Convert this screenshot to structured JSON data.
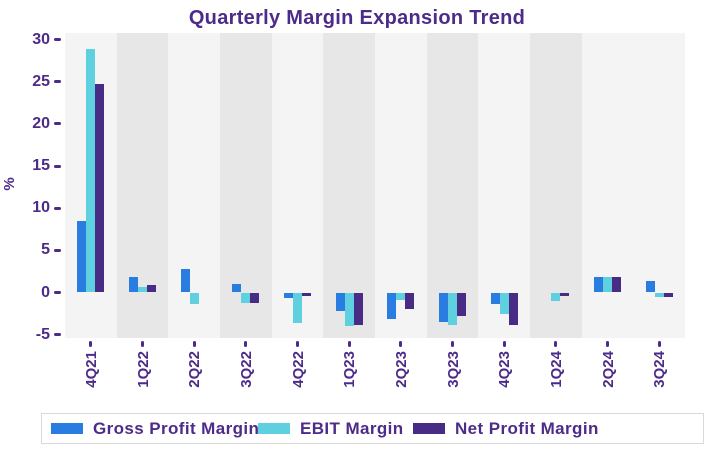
{
  "title": "Quarterly Margin Expansion Trend",
  "chart_data": {
    "type": "bar",
    "title": "Quarterly Margin Expansion Trend",
    "xlabel": "",
    "ylabel": "%",
    "categories": [
      "4Q21",
      "1Q22",
      "2Q22",
      "3Q22",
      "4Q22",
      "1Q23",
      "2Q23",
      "3Q23",
      "4Q23",
      "1Q24",
      "2Q24",
      "3Q24"
    ],
    "series": [
      {
        "name": "Gross Profit Margin",
        "color": "#2a7de0",
        "values": [
          8.5,
          1.8,
          2.8,
          1.0,
          -0.7,
          -2.2,
          -3.1,
          -3.5,
          -1.4,
          0.0,
          1.8,
          1.4
        ]
      },
      {
        "name": "EBIT Margin",
        "color": "#5fd0e0",
        "values": [
          28.9,
          0.7,
          -1.4,
          -1.3,
          -3.6,
          -4.0,
          -0.9,
          -3.8,
          -2.6,
          -1.0,
          1.8,
          -0.5
        ]
      },
      {
        "name": "Net Profit Margin",
        "color": "#472b85",
        "values": [
          24.8,
          0.9,
          0.0,
          -1.3,
          -0.4,
          -3.8,
          -1.9,
          -2.8,
          -3.8,
          -0.4,
          1.8,
          -0.5
        ]
      }
    ],
    "yticks": [
      30,
      25,
      20,
      15,
      10,
      5,
      0,
      -5
    ],
    "ylim": [
      -5.4,
      30.8
    ],
    "grid": false,
    "legend_position": "bottom",
    "band_shading": [
      "light",
      "dark",
      "light",
      "dark",
      "light",
      "dark",
      "light",
      "dark",
      "light",
      "dark",
      "light",
      "light"
    ],
    "colors": {
      "text": "#4c2b89",
      "band_light": "#f4f4f4",
      "band_dark": "#e7e7e7",
      "legend_border": "#d9d9d9",
      "background": "#ffffff"
    }
  }
}
